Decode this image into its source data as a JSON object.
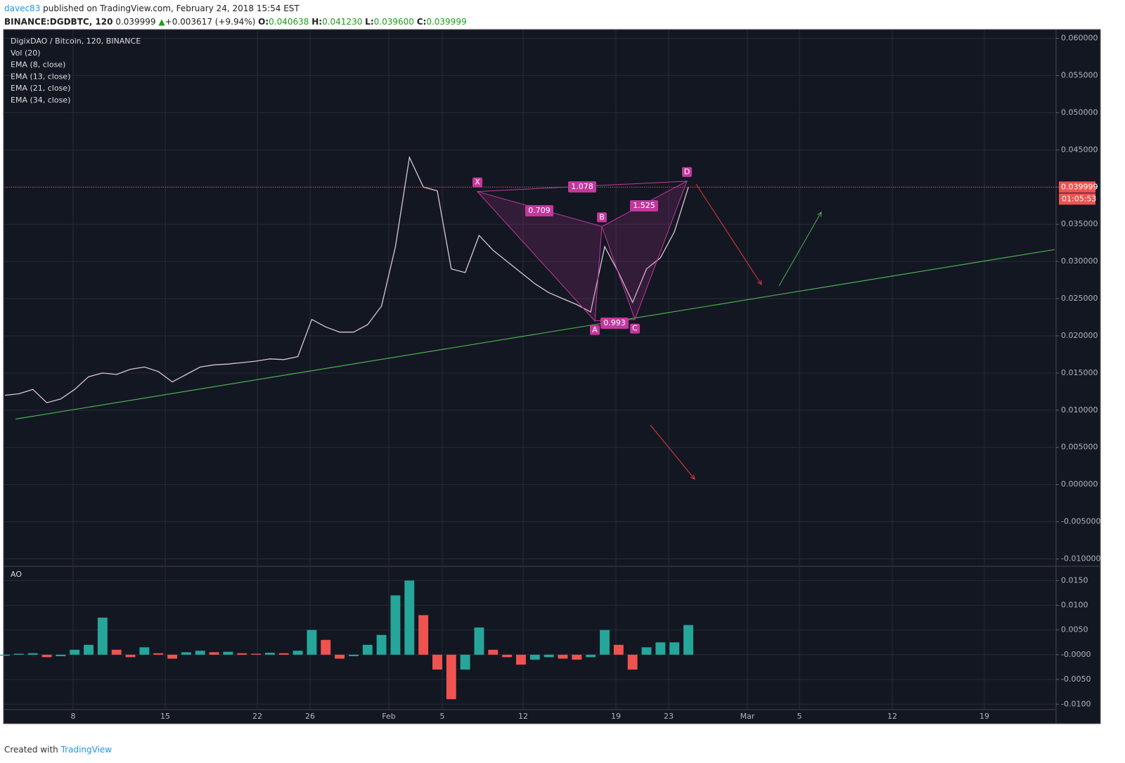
{
  "header": {
    "author": "davec83",
    "published": "published on TradingView.com, February 24, 2018 15:54 EST",
    "symbol": "BINANCE:DGDBTC, 120",
    "last": "0.039999",
    "arrow": "▲",
    "change": "+0.003617 (+9.94%)",
    "o_label": "O:",
    "open": "0.040638",
    "h_label": "H:",
    "high": "0.041230",
    "l_label": "L:",
    "low": "0.039600",
    "c_label": "C:",
    "close": "0.039999"
  },
  "footer": {
    "created": "Created with",
    "brand": "TradingView"
  },
  "chart_data": [
    {
      "type": "line",
      "title": "DigixDAO / Bitcoin, 120, BINANCE",
      "indicators": [
        "Vol (20)",
        "EMA (8, close)",
        "EMA (13, close)",
        "EMA (21, close)",
        "EMA (34, close)"
      ],
      "color": "#d8c8d4",
      "values": [
        0.012,
        0.0122,
        0.0128,
        0.011,
        0.0115,
        0.0128,
        0.0145,
        0.015,
        0.0148,
        0.0155,
        0.0158,
        0.0152,
        0.0138,
        0.0148,
        0.0158,
        0.0161,
        0.0162,
        0.0164,
        0.0166,
        0.0169,
        0.0168,
        0.0172,
        0.0222,
        0.0212,
        0.0205,
        0.0205,
        0.0215,
        0.024,
        0.032,
        0.044,
        0.04,
        0.0395,
        0.029,
        0.0285,
        0.0335,
        0.0315,
        0.03,
        0.0285,
        0.027,
        0.0258,
        0.025,
        0.0242,
        0.0232,
        0.032,
        0.0285,
        0.0245,
        0.029,
        0.0305,
        0.034,
        0.04
      ],
      "ylim": [
        -0.0109,
        0.0611
      ],
      "yticks": [
        {
          "value": 0.06,
          "label": "0.060000"
        },
        {
          "value": 0.055,
          "label": "0.055000"
        },
        {
          "value": 0.05,
          "label": "0.050000"
        },
        {
          "value": 0.045,
          "label": "0.045000"
        },
        {
          "value": 0.04,
          "label": "0.040000"
        },
        {
          "value": 0.035,
          "label": "0.035000"
        },
        {
          "value": 0.03,
          "label": "0.030000"
        },
        {
          "value": 0.025,
          "label": "0.025000"
        },
        {
          "value": 0.02,
          "label": "0.020000"
        },
        {
          "value": 0.015,
          "label": "0.015000"
        },
        {
          "value": 0.01,
          "label": "0.010000"
        },
        {
          "value": 0.005,
          "label": "0.005000"
        },
        {
          "value": 0,
          "label": "0.000000"
        },
        {
          "value": -0.005,
          "label": "-0.005000"
        },
        {
          "value": -0.01,
          "label": "-0.010000"
        }
      ],
      "grid": true,
      "last_price": 0.039999,
      "timer": "01:05:53",
      "trendline": {
        "color": "#4caf50",
        "values": [
          0.0088,
          0.0316
        ]
      },
      "pattern": {
        "color": "#c2389c",
        "points": [
          {
            "label": "X",
            "value": 0.0394
          },
          {
            "label": "A",
            "value": 0.022
          },
          {
            "label": "B",
            "value": 0.0347
          },
          {
            "label": "C",
            "value": 0.0222
          },
          {
            "label": "D",
            "value": 0.0408
          }
        ],
        "ratios": [
          1.078,
          0.709,
          1.525,
          0.993
        ]
      },
      "x_labels": [
        "8",
        "15",
        "22",
        "26",
        "Feb",
        "5",
        "12",
        "19",
        "23",
        "Mar",
        "5",
        "12",
        "19"
      ]
    },
    {
      "type": "bar",
      "title": "AO",
      "values": [
        -0.0002,
        0.0002,
        0.0003,
        -0.0005,
        -0.0003,
        0.001,
        0.002,
        0.0075,
        0.001,
        -0.0005,
        0.0015,
        0.0003,
        -0.0008,
        0.0005,
        0.0008,
        0.0005,
        0.0006,
        0.0003,
        0.0002,
        0.0004,
        0.0003,
        0.0008,
        0.005,
        0.003,
        -0.0008,
        -0.0003,
        0.002,
        0.004,
        0.012,
        0.015,
        0.008,
        -0.003,
        -0.009,
        -0.003,
        0.0055,
        0.001,
        -0.0005,
        -0.002,
        -0.001,
        -0.0005,
        -0.0008,
        -0.001,
        -0.0005,
        0.005,
        0.002,
        -0.003,
        0.0015,
        0.0025,
        0.0025,
        0.006
      ],
      "ylim": [
        -0.0111,
        0.0176
      ],
      "yticks": [
        {
          "value": 0.015,
          "label": "0.0150"
        },
        {
          "value": 0.01,
          "label": "0.0100"
        },
        {
          "value": 0.005,
          "label": "0.0050"
        },
        {
          "value": 0,
          "label": "-0.0000"
        },
        {
          "value": -0.005,
          "label": "-0.0050"
        },
        {
          "value": -0.01,
          "label": "-0.0100"
        }
      ],
      "grid": true,
      "up_color": "#26a69a",
      "down_color": "#ef5350"
    }
  ]
}
